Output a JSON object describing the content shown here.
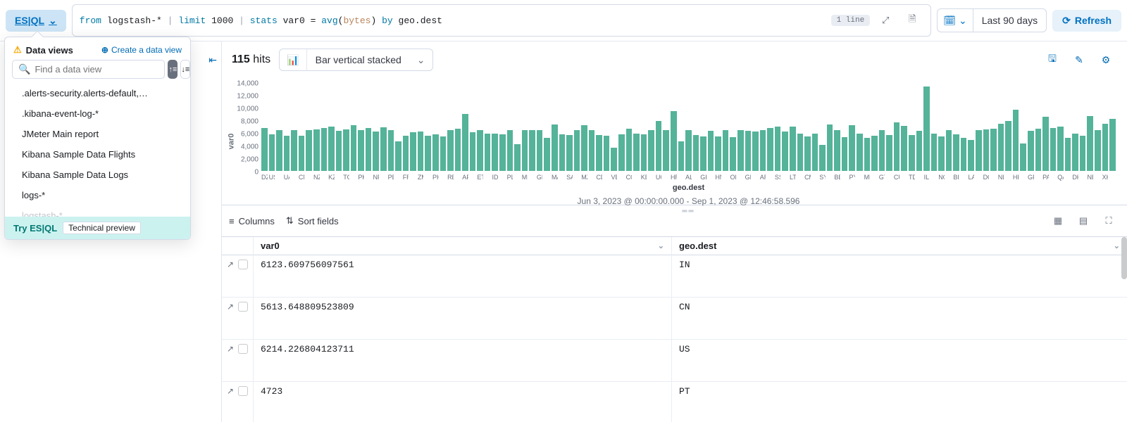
{
  "topbar": {
    "esql_label": "ES|QL",
    "query_parts": {
      "from": "from",
      "index": "logstash-*",
      "limit": "limit",
      "limit_n": "1000",
      "stats": "stats",
      "var": "var0",
      "eq": "=",
      "avg": "avg",
      "field": "bytes",
      "by": "by",
      "group": "geo.dest"
    },
    "one_line": "1 line",
    "date_label": "Last 90 days",
    "refresh_label": "Refresh"
  },
  "popover": {
    "title": "Data views",
    "create": "Create a data view",
    "search_placeholder": "Find a data view",
    "items": [
      ".alerts-security.alerts-default,…",
      ".kibana-event-log-*",
      "JMeter Main report",
      "Kibana Sample Data Flights",
      "Kibana Sample Data Logs",
      "logs-*"
    ],
    "faded_item": "logstash-*",
    "try_esql": "Try ES|QL",
    "tech_preview": "Technical preview"
  },
  "hits": {
    "count": "115",
    "suffix": "hits",
    "chart_type": "Bar vertical stacked"
  },
  "chart": {
    "type": "bar",
    "y_axis_label": "var0",
    "x_axis_label": "geo.dest",
    "time_range": "Jun 3, 2023 @ 00:00:00.000 - Sep 1, 2023 @ 12:46:58.596",
    "y_max": 14000,
    "y_ticks": [
      14000,
      12000,
      10000,
      8000,
      6000,
      4000,
      2000,
      0
    ],
    "bar_color": "#54b399",
    "categories": [
      "DZ",
      "US",
      "UA",
      "CN",
      "NZ",
      "KZ",
      "TG",
      "PK",
      "NP",
      "PE",
      "FR",
      "ZM",
      "PH",
      "RE",
      "AF",
      "ET",
      "ID",
      "PL",
      "MM",
      "GR",
      "MA",
      "SA",
      "MZ",
      "CD",
      "VE",
      "CO",
      "KE",
      "UG",
      "HR",
      "AL",
      "GH",
      "HN",
      "OM",
      "GB",
      "AR",
      "SS",
      "LT",
      "CM",
      "SY",
      "BE",
      "PY",
      "MP",
      "GT",
      "CU",
      "TD",
      "IL",
      "NO",
      "BI",
      "LA",
      "DO",
      "NL",
      "HK",
      "GP",
      "PA",
      "QA",
      "DK",
      "NE",
      "XK"
    ],
    "values": [
      6800,
      5800,
      6400,
      5600,
      6400,
      5600,
      6400,
      6600,
      6800,
      7000,
      6300,
      6600,
      7200,
      6400,
      6800,
      6200,
      6900,
      6500,
      4700,
      5600,
      6100,
      6200,
      5600,
      5800,
      5400,
      6500,
      6700,
      9000,
      6100,
      6500,
      5900,
      5900,
      5800,
      6400,
      4200,
      6400,
      6500,
      6500,
      5200,
      7300,
      5800,
      5700,
      6400,
      7200,
      6400,
      5700,
      5600,
      3700,
      5800,
      6700,
      5900,
      5800,
      6500,
      7900,
      6400,
      9400,
      4700,
      6500,
      5700,
      5400,
      6300,
      5500,
      6400,
      5300,
      6500,
      6300,
      6200,
      6400,
      6800,
      7000,
      6200,
      7000,
      5900,
      5500,
      5900,
      4100,
      7300,
      6500,
      5300,
      7200,
      5900,
      5200,
      5600,
      6500,
      5700,
      7700,
      7100,
      5700,
      6300,
      13300,
      5900,
      5500,
      6400,
      5800,
      5200,
      4900,
      6500,
      6600,
      6700,
      7500,
      7900,
      9700,
      4300,
      6300,
      6700,
      8600,
      6800,
      7000,
      5200,
      5900,
      5600,
      8700,
      6400,
      7400,
      8200
    ]
  },
  "table": {
    "columns_label": "Columns",
    "sort_label": "Sort fields",
    "col_var0": "var0",
    "col_geo": "geo.dest",
    "rows": [
      {
        "var0": "6123.609756097561",
        "geo": "IN"
      },
      {
        "var0": "5613.648809523809",
        "geo": "CN"
      },
      {
        "var0": "6214.226804123711",
        "geo": "US"
      },
      {
        "var0": "4723",
        "geo": "PT"
      }
    ]
  }
}
